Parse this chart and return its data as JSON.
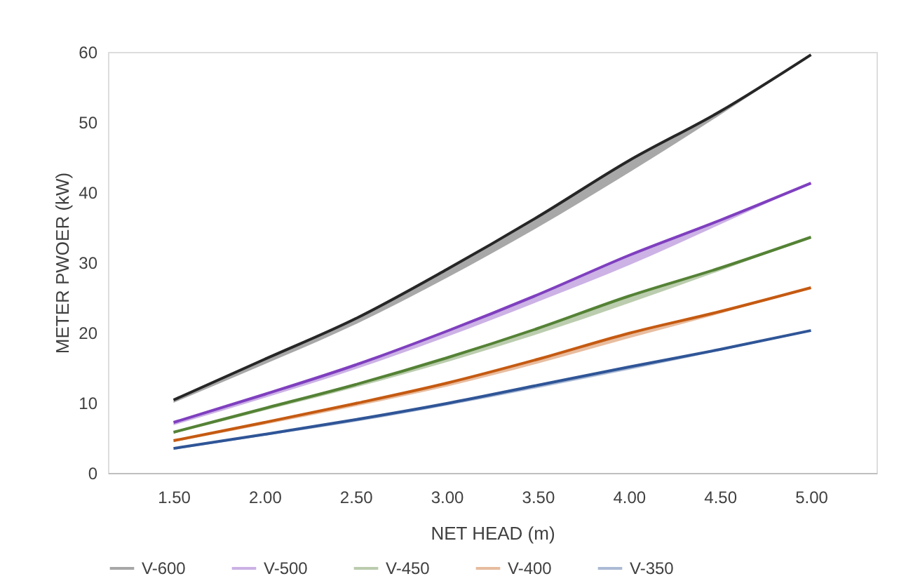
{
  "chart_data": {
    "type": "line",
    "xlabel": "NET HEAD (m)",
    "ylabel": "METER PWOER (kW)",
    "categories": [
      "1.50",
      "2.00",
      "2.50",
      "3.00",
      "3.50",
      "4.00",
      "4.50",
      "5.00"
    ],
    "ylim": [
      0,
      60
    ],
    "yticks": [
      0,
      10,
      20,
      30,
      40,
      50,
      60
    ],
    "grid": false,
    "legend": "bottom",
    "marker": "none",
    "line_style": "solid",
    "series": [
      {
        "name": "V-600",
        "color": "#262626",
        "values": [
          10.4,
          16.2,
          22,
          29,
          36.5,
          44.5,
          51.5,
          59.6
        ],
        "lower": [
          10,
          15.5,
          21.2,
          27.8,
          35,
          42.8,
          51,
          59.6
        ],
        "upper": [
          10.4,
          16.2,
          22,
          29,
          36.5,
          44.5,
          51.5,
          59.6
        ]
      },
      {
        "name": "V-500",
        "color": "#7f3fbf",
        "values": [
          7.2,
          11.2,
          15.4,
          20.2,
          25.4,
          31,
          36,
          41.3
        ],
        "lower": [
          6.8,
          10.7,
          14.8,
          19.4,
          24.4,
          29.6,
          35.4,
          41.3
        ],
        "upper": [
          7.2,
          11.2,
          15.4,
          20.2,
          25.4,
          31,
          36,
          41.3
        ]
      },
      {
        "name": "V-450",
        "color": "#548235",
        "values": [
          5.8,
          9.2,
          12.6,
          16.4,
          20.6,
          25.2,
          29.2,
          33.6
        ],
        "lower": [
          5.6,
          8.9,
          12.2,
          15.8,
          19.8,
          24.2,
          28.8,
          33.6
        ],
        "upper": [
          5.8,
          9.2,
          12.6,
          16.4,
          20.6,
          25.2,
          29.2,
          33.6
        ]
      },
      {
        "name": "V-400",
        "color": "#c55a11",
        "values": [
          4.6,
          7.2,
          9.9,
          12.8,
          16.2,
          19.9,
          23,
          26.4
        ],
        "lower": [
          4.4,
          6.9,
          9.5,
          12.3,
          15.6,
          19.2,
          22.7,
          26.4
        ],
        "upper": [
          4.6,
          7.2,
          9.9,
          12.8,
          16.2,
          19.9,
          23,
          26.4
        ]
      },
      {
        "name": "V-350",
        "color": "#2f5597",
        "values": [
          3.5,
          5.5,
          7.6,
          9.9,
          12.5,
          15.1,
          17.6,
          20.3
        ],
        "lower": [
          3.3,
          5.3,
          7.3,
          9.6,
          12.1,
          14.7,
          17.4,
          20.3
        ],
        "upper": [
          3.5,
          5.5,
          7.6,
          9.9,
          12.5,
          15.1,
          17.6,
          20.3
        ]
      }
    ]
  }
}
